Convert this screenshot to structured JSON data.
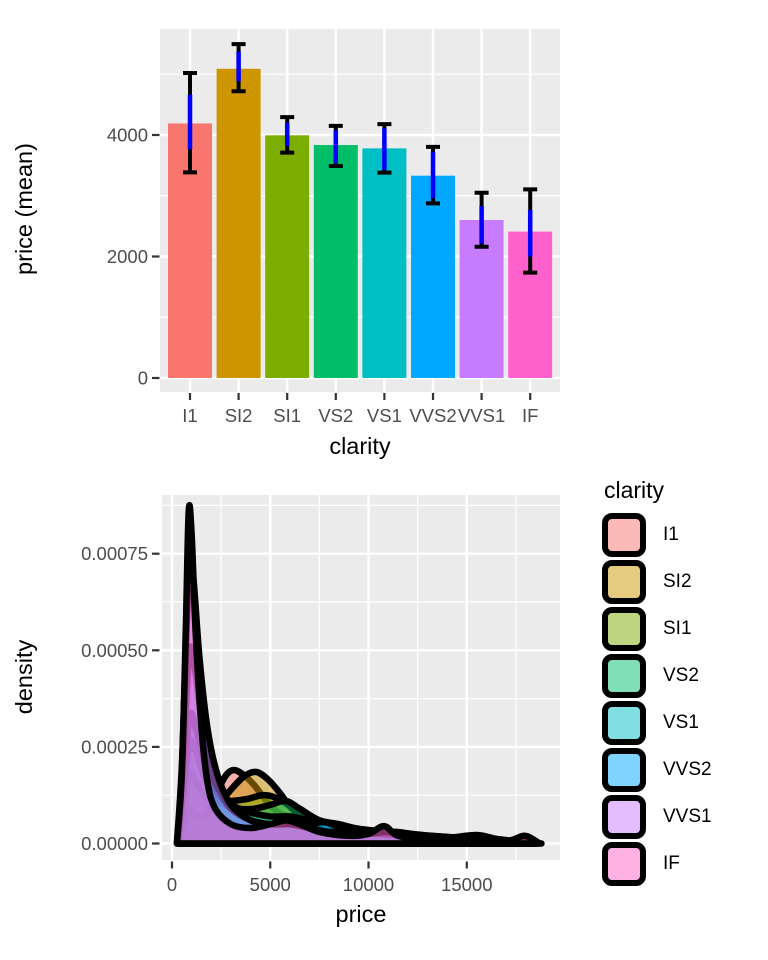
{
  "figure": {
    "background": "#FFFFFF",
    "panel_background": "#EBEBEB",
    "grid_color": "#FFFFFF",
    "tick_mark_color": "#333333",
    "tick_label_color": "#4D4D4D",
    "axis_title_color": "#000000"
  },
  "chart_data": [
    {
      "type": "bar",
      "title": "",
      "xlabel": "clarity",
      "ylabel": "price (mean)",
      "categories": [
        "I1",
        "SI2",
        "SI1",
        "VS2",
        "VS1",
        "VVS2",
        "VVS1",
        "IF"
      ],
      "values": [
        4190,
        5090,
        3995,
        3835,
        3780,
        3330,
        2600,
        2410
      ],
      "bar_colors": [
        "#F8766D",
        "#CD9600",
        "#7CAE00",
        "#00BE67",
        "#00BFC4",
        "#00A9FF",
        "#C77CFF",
        "#FF61CC"
      ],
      "error_bars_black": [
        [
          3385,
          5020
        ],
        [
          4720,
          5495
        ],
        [
          3710,
          4295
        ],
        [
          3490,
          4150
        ],
        [
          3380,
          4180
        ],
        [
          2875,
          3805
        ],
        [
          2160,
          3050
        ],
        [
          1735,
          3105
        ]
      ],
      "error_bars_blue": [
        [
          3765,
          4665
        ],
        [
          4885,
          5375
        ],
        [
          3820,
          4200
        ],
        [
          3535,
          4080
        ],
        [
          3425,
          4110
        ],
        [
          2960,
          3725
        ],
        [
          2215,
          2830
        ],
        [
          2000,
          2765
        ]
      ],
      "errorbar_outer_color": "#000000",
      "errorbar_inner_color": "#0000FF",
      "yticks": [
        0,
        2000,
        4000
      ],
      "ytick_labels": [
        "0",
        "2000",
        "4000"
      ],
      "y_minor": [
        1000,
        3000,
        5000
      ],
      "ylim": [
        0,
        5745
      ],
      "grid": "on",
      "legend": "none"
    },
    {
      "type": "area",
      "title": "",
      "xlabel": "price",
      "ylabel": "density",
      "xticks": [
        0,
        5000,
        10000,
        15000
      ],
      "xtick_labels": [
        "0",
        "5000",
        "10000",
        "15000"
      ],
      "x_minor": [
        2500,
        7500,
        12500,
        17500
      ],
      "yticks": [
        0,
        0.00025,
        0.0005,
        0.00075
      ],
      "ytick_labels": [
        "0.00000",
        "0.00025",
        "0.00050",
        "0.00075"
      ],
      "y_minor": [
        0.000125,
        0.000375,
        0.000625,
        0.000875
      ],
      "xlim": [
        0,
        19750
      ],
      "ylim": [
        0,
        0.0009
      ],
      "grid": "on",
      "fill_alpha": 0.5,
      "outline": {
        "color": "#000000",
        "width": 6.5
      },
      "legend": {
        "title": "clarity",
        "position": "right"
      },
      "series": [
        {
          "name": "I1",
          "color": "#F8766D",
          "points": [
            [
              700,
              0
            ],
            [
              1000,
              2e-05
            ],
            [
              1500,
              5e-05
            ],
            [
              2000,
              0.0001
            ],
            [
              2400,
              0.000145
            ],
            [
              2800,
              0.00018
            ],
            [
              3200,
              0.00019
            ],
            [
              3700,
              0.000175
            ],
            [
              4200,
              0.00015
            ],
            [
              4800,
              0.00011
            ],
            [
              5400,
              8e-05
            ],
            [
              6100,
              7e-05
            ],
            [
              6800,
              7.5e-05
            ],
            [
              7400,
              6e-05
            ],
            [
              8200,
              4.5e-05
            ],
            [
              9200,
              3.5e-05
            ],
            [
              10200,
              3e-05
            ],
            [
              10900,
              3.5e-05
            ],
            [
              11600,
              2.5e-05
            ],
            [
              12800,
              2e-05
            ],
            [
              14000,
              1.5e-05
            ],
            [
              15500,
              2.2e-05
            ],
            [
              16500,
              1.2e-05
            ],
            [
              17500,
              6e-06
            ],
            [
              18300,
              0
            ]
          ]
        },
        {
          "name": "SI2",
          "color": "#CD9600",
          "points": [
            [
              400,
              0
            ],
            [
              700,
              6e-05
            ],
            [
              900,
              9e-05
            ],
            [
              1300,
              7e-05
            ],
            [
              1900,
              8e-05
            ],
            [
              2500,
              0.00011
            ],
            [
              3100,
              0.000145
            ],
            [
              3700,
              0.000175
            ],
            [
              4300,
              0.000185
            ],
            [
              4900,
              0.000165
            ],
            [
              5500,
              0.00013
            ],
            [
              6100,
              9e-05
            ],
            [
              6900,
              6e-05
            ],
            [
              7700,
              5e-05
            ],
            [
              8600,
              4e-05
            ],
            [
              9600,
              3.5e-05
            ],
            [
              10600,
              3e-05
            ],
            [
              11400,
              3e-05
            ],
            [
              12200,
              2.5e-05
            ],
            [
              13200,
              2e-05
            ],
            [
              14600,
              1.5e-05
            ],
            [
              16100,
              1e-05
            ],
            [
              17600,
              5e-06
            ],
            [
              18800,
              0
            ]
          ]
        },
        {
          "name": "SI1",
          "color": "#7CAE00",
          "points": [
            [
              300,
              0
            ],
            [
              600,
              8e-05
            ],
            [
              900,
              0.00018
            ],
            [
              1200,
              0.00016
            ],
            [
              1700,
              0.00012
            ],
            [
              2300,
              0.00011
            ],
            [
              3000,
              0.00011
            ],
            [
              3800,
              0.000115
            ],
            [
              4600,
              0.000125
            ],
            [
              5200,
              0.00012
            ],
            [
              5900,
              0.0001
            ],
            [
              6600,
              7e-05
            ],
            [
              7400,
              5e-05
            ],
            [
              8300,
              4e-05
            ],
            [
              9300,
              3e-05
            ],
            [
              10300,
              2.5e-05
            ],
            [
              11300,
              2e-05
            ],
            [
              12600,
              1.5e-05
            ],
            [
              14000,
              1e-05
            ],
            [
              15500,
              7e-06
            ],
            [
              17000,
              4e-06
            ],
            [
              18300,
              0
            ]
          ]
        },
        {
          "name": "VS2",
          "color": "#00BE67",
          "points": [
            [
              300,
              0
            ],
            [
              600,
              0.00013
            ],
            [
              900,
              0.00026
            ],
            [
              1200,
              0.00024
            ],
            [
              1600,
              0.00018
            ],
            [
              2100,
              0.00013
            ],
            [
              2700,
              0.0001
            ],
            [
              3400,
              9e-05
            ],
            [
              4200,
              9e-05
            ],
            [
              5000,
              0.0001
            ],
            [
              5800,
              0.00011
            ],
            [
              6500,
              9e-05
            ],
            [
              7500,
              6e-05
            ],
            [
              8500,
              5e-05
            ],
            [
              9300,
              4e-05
            ],
            [
              10000,
              3.5e-05
            ],
            [
              11000,
              3e-05
            ],
            [
              12000,
              2.5e-05
            ],
            [
              13000,
              2e-05
            ],
            [
              14500,
              1.5e-05
            ],
            [
              16000,
              1e-05
            ],
            [
              17500,
              6e-06
            ],
            [
              18600,
              0
            ]
          ]
        },
        {
          "name": "VS1",
          "color": "#00BFC4",
          "points": [
            [
              300,
              0
            ],
            [
              600,
              0.00016
            ],
            [
              900,
              0.00033
            ],
            [
              1200,
              0.0003
            ],
            [
              1600,
              0.00022
            ],
            [
              2000,
              0.00016
            ],
            [
              2500,
              0.00012
            ],
            [
              3000,
              0.0001
            ],
            [
              4000,
              8e-05
            ],
            [
              5000,
              7e-05
            ],
            [
              6000,
              7e-05
            ],
            [
              7000,
              6e-05
            ],
            [
              7800,
              5.5e-05
            ],
            [
              8700,
              4.5e-05
            ],
            [
              9700,
              3.5e-05
            ],
            [
              10700,
              3e-05
            ],
            [
              11700,
              2.5e-05
            ],
            [
              13000,
              2e-05
            ],
            [
              14500,
              1.5e-05
            ],
            [
              16000,
              1e-05
            ],
            [
              17500,
              5e-06
            ],
            [
              18600,
              0
            ]
          ]
        },
        {
          "name": "VVS2",
          "color": "#00A9FF",
          "points": [
            [
              300,
              0
            ],
            [
              600,
              0.00025
            ],
            [
              900,
              0.0005
            ],
            [
              1200,
              0.00044
            ],
            [
              1600,
              0.00028
            ],
            [
              2000,
              0.00018
            ],
            [
              2500,
              0.00013
            ],
            [
              3000,
              9e-05
            ],
            [
              4000,
              6e-05
            ],
            [
              5000,
              5e-05
            ],
            [
              6000,
              5e-05
            ],
            [
              7000,
              5e-05
            ],
            [
              7800,
              5.5e-05
            ],
            [
              8600,
              4e-05
            ],
            [
              9600,
              3e-05
            ],
            [
              10600,
              2.5e-05
            ],
            [
              12000,
              2e-05
            ],
            [
              13500,
              1.5e-05
            ],
            [
              15000,
              1e-05
            ],
            [
              16500,
              7e-06
            ],
            [
              18000,
              3e-06
            ],
            [
              18500,
              0
            ]
          ]
        },
        {
          "name": "VVS1",
          "color": "#C77CFF",
          "points": [
            [
              250,
              0
            ],
            [
              500,
              0.0002
            ],
            [
              700,
              0.0005
            ],
            [
              900,
              0.00074
            ],
            [
              1100,
              0.00068
            ],
            [
              1400,
              0.00048
            ],
            [
              1800,
              0.0003
            ],
            [
              2300,
              0.00018
            ],
            [
              3000,
              0.0001
            ],
            [
              4000,
              6e-05
            ],
            [
              5000,
              5e-05
            ],
            [
              6000,
              5e-05
            ],
            [
              7000,
              4e-05
            ],
            [
              8000,
              3e-05
            ],
            [
              9000,
              3e-05
            ],
            [
              10000,
              2.5e-05
            ],
            [
              10900,
              3e-05
            ],
            [
              12000,
              2e-05
            ],
            [
              13500,
              1.5e-05
            ],
            [
              15000,
              1e-05
            ],
            [
              16500,
              7e-06
            ],
            [
              18000,
              3e-06
            ],
            [
              18500,
              0
            ]
          ]
        },
        {
          "name": "IF",
          "color": "#FF61CC",
          "points": [
            [
              250,
              0
            ],
            [
              500,
              0.00018
            ],
            [
              700,
              0.00055
            ],
            [
              850,
              0.00086
            ],
            [
              1000,
              0.0008
            ],
            [
              1200,
              0.00055
            ],
            [
              1500,
              0.0003
            ],
            [
              1800,
              0.00016
            ],
            [
              2200,
              9e-05
            ],
            [
              3000,
              5e-05
            ],
            [
              4000,
              4e-05
            ],
            [
              5000,
              5e-05
            ],
            [
              5800,
              6e-05
            ],
            [
              6500,
              5e-05
            ],
            [
              7500,
              3e-05
            ],
            [
              9000,
              2e-05
            ],
            [
              10000,
              2.5e-05
            ],
            [
              10800,
              4.5e-05
            ],
            [
              11500,
              2e-05
            ],
            [
              13000,
              1e-05
            ],
            [
              15000,
              8e-06
            ],
            [
              17000,
              6e-06
            ],
            [
              17900,
              2e-05
            ],
            [
              18400,
              1e-05
            ],
            [
              18700,
              0
            ]
          ]
        }
      ]
    }
  ]
}
